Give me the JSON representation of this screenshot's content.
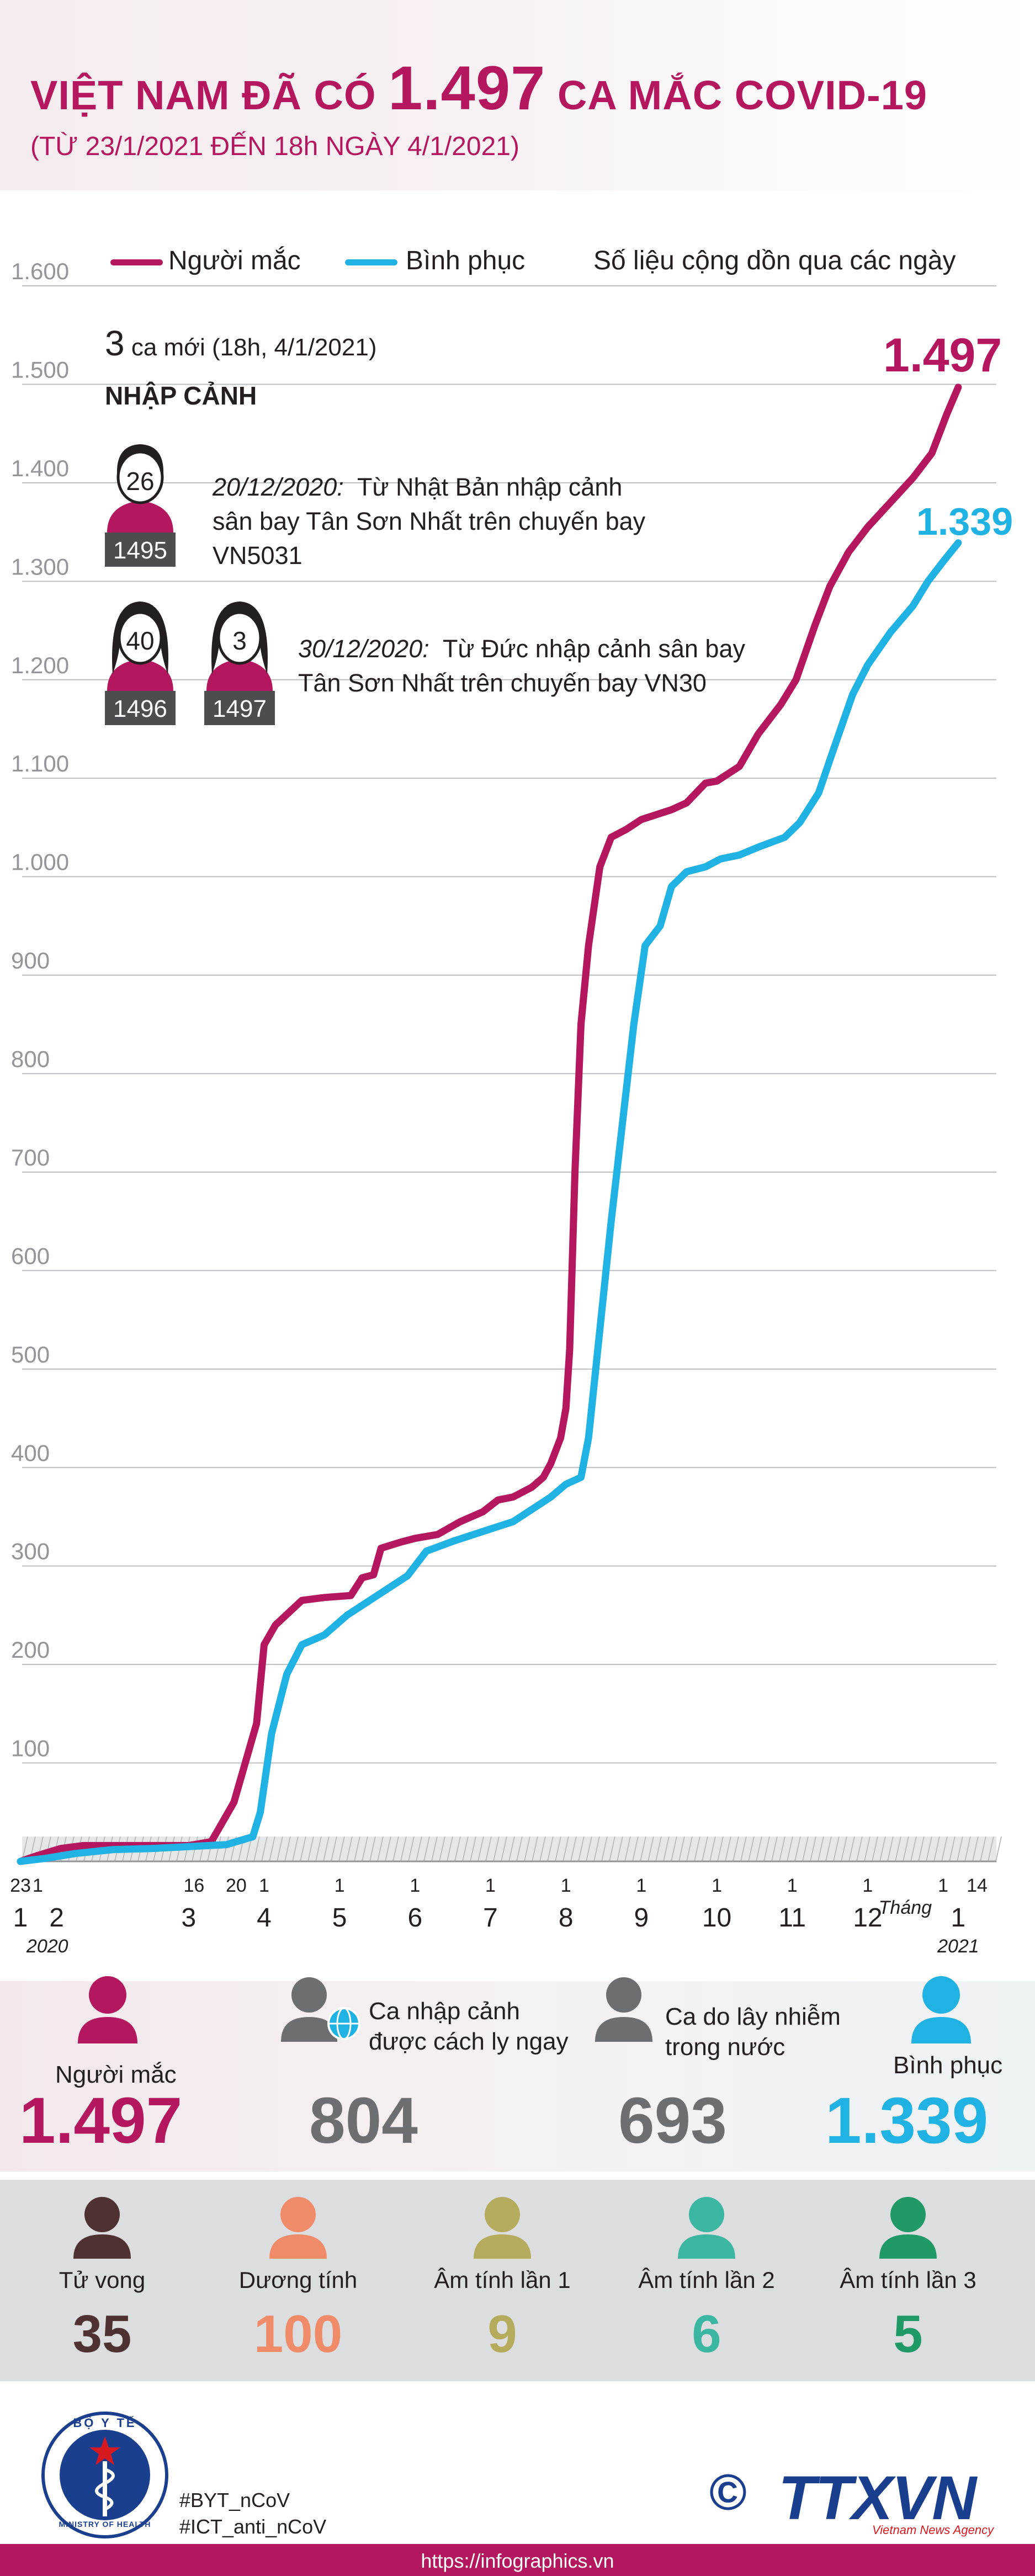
{
  "header": {
    "title_prefix": "VIỆT NAM ĐÃ CÓ",
    "title_number": "1.497",
    "title_suffix": "CA MẮC COVID-19",
    "subtitle": "(TỪ 23/1/2021 ĐẾN 18h NGÀY 4/1/2021)"
  },
  "legend": {
    "cases_label": "Người mắc",
    "recovered_label": "Bình phục",
    "note": "Số liệu cộng dồn qua các ngày"
  },
  "colors": {
    "cases": "#b5175e",
    "recovered": "#1fb2e3",
    "gray": "#6d6e71",
    "deaths": "#4e3130",
    "positive": "#ef8b68",
    "neg1": "#b4ab5c",
    "neg2": "#3bb6a0",
    "neg3": "#1f9a67"
  },
  "annotation": {
    "new_cases_number": "3",
    "new_cases_text": "ca mới (18h, 4/1/2021)",
    "import_title": "NHẬP CẢNH",
    "case1_age": "26",
    "case1_id": "1495",
    "case1_date": "20/12/2020:",
    "case1_line1": "Từ Nhật Bản nhập cảnh",
    "case1_line2": "sân bay Tân Sơn Nhất trên chuyến bay",
    "case1_line3": "VN5031",
    "case2_age": "40",
    "case2_id": "1496",
    "case3_age": "3",
    "case3_id": "1497",
    "case23_date": "30/12/2020:",
    "case23_line1": "Từ Đức nhập cảnh sân bay",
    "case23_line2": "Tân Sơn Nhất trên chuyến bay VN30"
  },
  "chart_data": {
    "type": "line",
    "ylim": [
      0,
      1600
    ],
    "yticks": [
      "100",
      "200",
      "300",
      "400",
      "500",
      "600",
      "700",
      "800",
      "900",
      "1.000",
      "1.100",
      "1.200",
      "1.300",
      "1.400",
      "1.500",
      "1.600"
    ],
    "grid": true,
    "legend_position": "top",
    "x_day_ticks": [
      "23",
      "1",
      "16",
      "20",
      "1",
      "1",
      "1",
      "1",
      "1",
      "1",
      "1",
      "1",
      "1",
      "1",
      "14"
    ],
    "x_month_ticks": [
      "1",
      "2",
      "3",
      "4",
      "5",
      "6",
      "7",
      "8",
      "9",
      "10",
      "11",
      "12",
      "1"
    ],
    "x_year_start": "2020",
    "x_month_word": "Tháng",
    "x_year_end": "2021",
    "x_month_positions": [
      1,
      2,
      3,
      4,
      5,
      6,
      7,
      8,
      9,
      10,
      11,
      12,
      13
    ],
    "series": [
      {
        "name": "Người mắc",
        "final_label": "1.497",
        "points": [
          [
            0.77,
            0
          ],
          [
            1.0,
            6
          ],
          [
            1.3,
            13
          ],
          [
            1.6,
            16
          ],
          [
            2.0,
            16
          ],
          [
            2.5,
            16
          ],
          [
            3.0,
            16
          ],
          [
            3.3,
            20
          ],
          [
            3.6,
            60
          ],
          [
            3.9,
            140
          ],
          [
            4.0,
            220
          ],
          [
            4.15,
            240
          ],
          [
            4.5,
            265
          ],
          [
            4.8,
            268
          ],
          [
            5.15,
            270
          ],
          [
            5.3,
            288
          ],
          [
            5.45,
            291
          ],
          [
            5.55,
            318
          ],
          [
            5.8,
            324
          ],
          [
            6.0,
            328
          ],
          [
            6.3,
            332
          ],
          [
            6.6,
            345
          ],
          [
            6.9,
            355
          ],
          [
            7.1,
            367
          ],
          [
            7.3,
            370
          ],
          [
            7.55,
            380
          ],
          [
            7.7,
            390
          ],
          [
            7.8,
            404
          ],
          [
            7.93,
            430
          ],
          [
            8.0,
            460
          ],
          [
            8.05,
            520
          ],
          [
            8.12,
            700
          ],
          [
            8.2,
            850
          ],
          [
            8.3,
            930
          ],
          [
            8.45,
            1010
          ],
          [
            8.6,
            1040
          ],
          [
            8.8,
            1048
          ],
          [
            9.0,
            1058
          ],
          [
            9.2,
            1063
          ],
          [
            9.4,
            1068
          ],
          [
            9.6,
            1075
          ],
          [
            9.85,
            1095
          ],
          [
            10.0,
            1097
          ],
          [
            10.3,
            1112
          ],
          [
            10.55,
            1145
          ],
          [
            10.85,
            1175
          ],
          [
            11.05,
            1200
          ],
          [
            11.3,
            1255
          ],
          [
            11.5,
            1295
          ],
          [
            11.75,
            1330
          ],
          [
            12.0,
            1355
          ],
          [
            12.3,
            1380
          ],
          [
            12.6,
            1405
          ],
          [
            12.85,
            1430
          ],
          [
            13.05,
            1470
          ],
          [
            13.2,
            1497
          ]
        ]
      },
      {
        "name": "Bình phục",
        "final_label": "1.339",
        "points": [
          [
            0.77,
            0
          ],
          [
            1.1,
            3
          ],
          [
            1.5,
            8
          ],
          [
            2.0,
            12
          ],
          [
            2.5,
            13
          ],
          [
            3.0,
            15
          ],
          [
            3.5,
            17
          ],
          [
            3.85,
            25
          ],
          [
            3.95,
            50
          ],
          [
            4.1,
            130
          ],
          [
            4.3,
            190
          ],
          [
            4.5,
            220
          ],
          [
            4.8,
            230
          ],
          [
            5.1,
            250
          ],
          [
            5.5,
            270
          ],
          [
            5.9,
            290
          ],
          [
            6.15,
            315
          ],
          [
            6.5,
            325
          ],
          [
            6.9,
            335
          ],
          [
            7.3,
            345
          ],
          [
            7.8,
            370
          ],
          [
            8.0,
            383
          ],
          [
            8.2,
            390
          ],
          [
            8.3,
            430
          ],
          [
            8.45,
            540
          ],
          [
            8.6,
            650
          ],
          [
            8.75,
            750
          ],
          [
            8.9,
            850
          ],
          [
            9.05,
            930
          ],
          [
            9.25,
            950
          ],
          [
            9.4,
            990
          ],
          [
            9.6,
            1005
          ],
          [
            9.85,
            1010
          ],
          [
            10.05,
            1018
          ],
          [
            10.3,
            1022
          ],
          [
            10.55,
            1030
          ],
          [
            10.9,
            1040
          ],
          [
            11.1,
            1055
          ],
          [
            11.35,
            1085
          ],
          [
            11.55,
            1130
          ],
          [
            11.8,
            1185
          ],
          [
            12.0,
            1215
          ],
          [
            12.3,
            1248
          ],
          [
            12.6,
            1275
          ],
          [
            12.8,
            1300
          ],
          [
            13.0,
            1320
          ],
          [
            13.2,
            1339
          ]
        ]
      }
    ]
  },
  "summary": {
    "cases_label": "Người mắc",
    "cases_value": "1.497",
    "imported_label_1": "Ca nhập cảnh",
    "imported_label_2": "được cách ly ngay",
    "imported_value": "804",
    "domestic_label_1": "Ca do lây nhiễm",
    "domestic_label_2": "trong nước",
    "domestic_value": "693",
    "recovered_label": "Bình phục",
    "recovered_value": "1.339"
  },
  "status": [
    {
      "label": "Tử vong",
      "value": "35"
    },
    {
      "label": "Dương tính",
      "value": "100"
    },
    {
      "label": "Âm tính lần 1",
      "value": "9"
    },
    {
      "label": "Âm tính lần 2",
      "value": "6"
    },
    {
      "label": "Âm tính lần 3",
      "value": "5"
    }
  ],
  "footer": {
    "logo_top": "BỘ Y TẾ",
    "logo_bottom": "MINISTRY OF HEALTH",
    "hashtag1": "#BYT_nCoV",
    "hashtag2": "#ICT_anti_nCoV",
    "copyright": "©",
    "agency": "TTXVN",
    "agency_sub": "Vietnam News Agency",
    "url": "https://infographics.vn"
  }
}
